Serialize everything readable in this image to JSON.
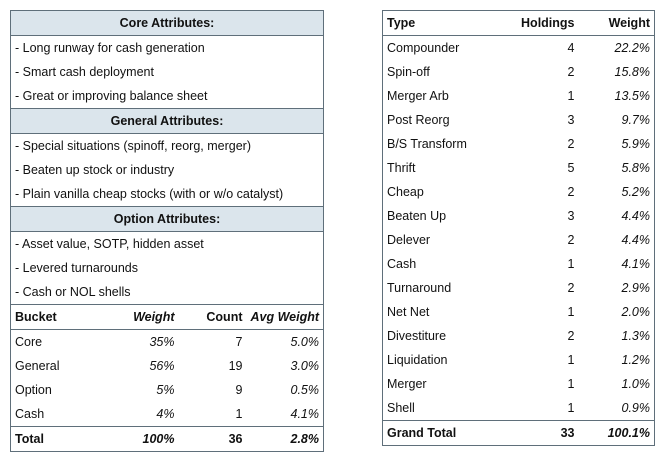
{
  "attributes": {
    "core": {
      "title": "Core Attributes:",
      "items": [
        "- Long runway for cash generation",
        "- Smart cash deployment",
        "- Great or improving balance sheet"
      ]
    },
    "general": {
      "title": "General Attributes:",
      "items": [
        "- Special situations (spinoff, reorg, merger)",
        "- Beaten up stock or industry",
        "- Plain vanilla cheap stocks (with or w/o catalyst)"
      ]
    },
    "option": {
      "title": "Option Attributes:",
      "items": [
        "- Asset value, SOTP, hidden asset",
        "- Levered turnarounds",
        "- Cash or NOL shells"
      ]
    }
  },
  "bucket_table": {
    "headers": [
      "Bucket",
      "Weight",
      "Count",
      "Avg Weight"
    ],
    "rows": [
      [
        "Core",
        "35%",
        "7",
        "5.0%"
      ],
      [
        "General",
        "56%",
        "19",
        "3.0%"
      ],
      [
        "Option",
        "5%",
        "9",
        "0.5%"
      ],
      [
        "Cash",
        "4%",
        "1",
        "4.1%"
      ]
    ],
    "total": [
      "Total",
      "100%",
      "36",
      "2.8%"
    ]
  },
  "type_table": {
    "headers": [
      "Type",
      "Holdings",
      "Weight"
    ],
    "rows": [
      [
        "Compounder",
        "4",
        "22.2%"
      ],
      [
        "Spin-off",
        "2",
        "15.8%"
      ],
      [
        "Merger Arb",
        "1",
        "13.5%"
      ],
      [
        "Post Reorg",
        "3",
        "9.7%"
      ],
      [
        "B/S Transform",
        "2",
        "5.9%"
      ],
      [
        "Thrift",
        "5",
        "5.8%"
      ],
      [
        "Cheap",
        "2",
        "5.2%"
      ],
      [
        "Beaten Up",
        "3",
        "4.4%"
      ],
      [
        "Delever",
        "2",
        "4.4%"
      ],
      [
        "Cash",
        "1",
        "4.1%"
      ],
      [
        "Turnaround",
        "2",
        "2.9%"
      ],
      [
        "Net Net",
        "1",
        "2.0%"
      ],
      [
        "Divestiture",
        "2",
        "1.3%"
      ],
      [
        "Liquidation",
        "1",
        "1.2%"
      ],
      [
        "Merger",
        "1",
        "1.0%"
      ],
      [
        "Shell",
        "1",
        "0.9%"
      ]
    ],
    "total": [
      "Grand Total",
      "33",
      "100.1%"
    ]
  }
}
